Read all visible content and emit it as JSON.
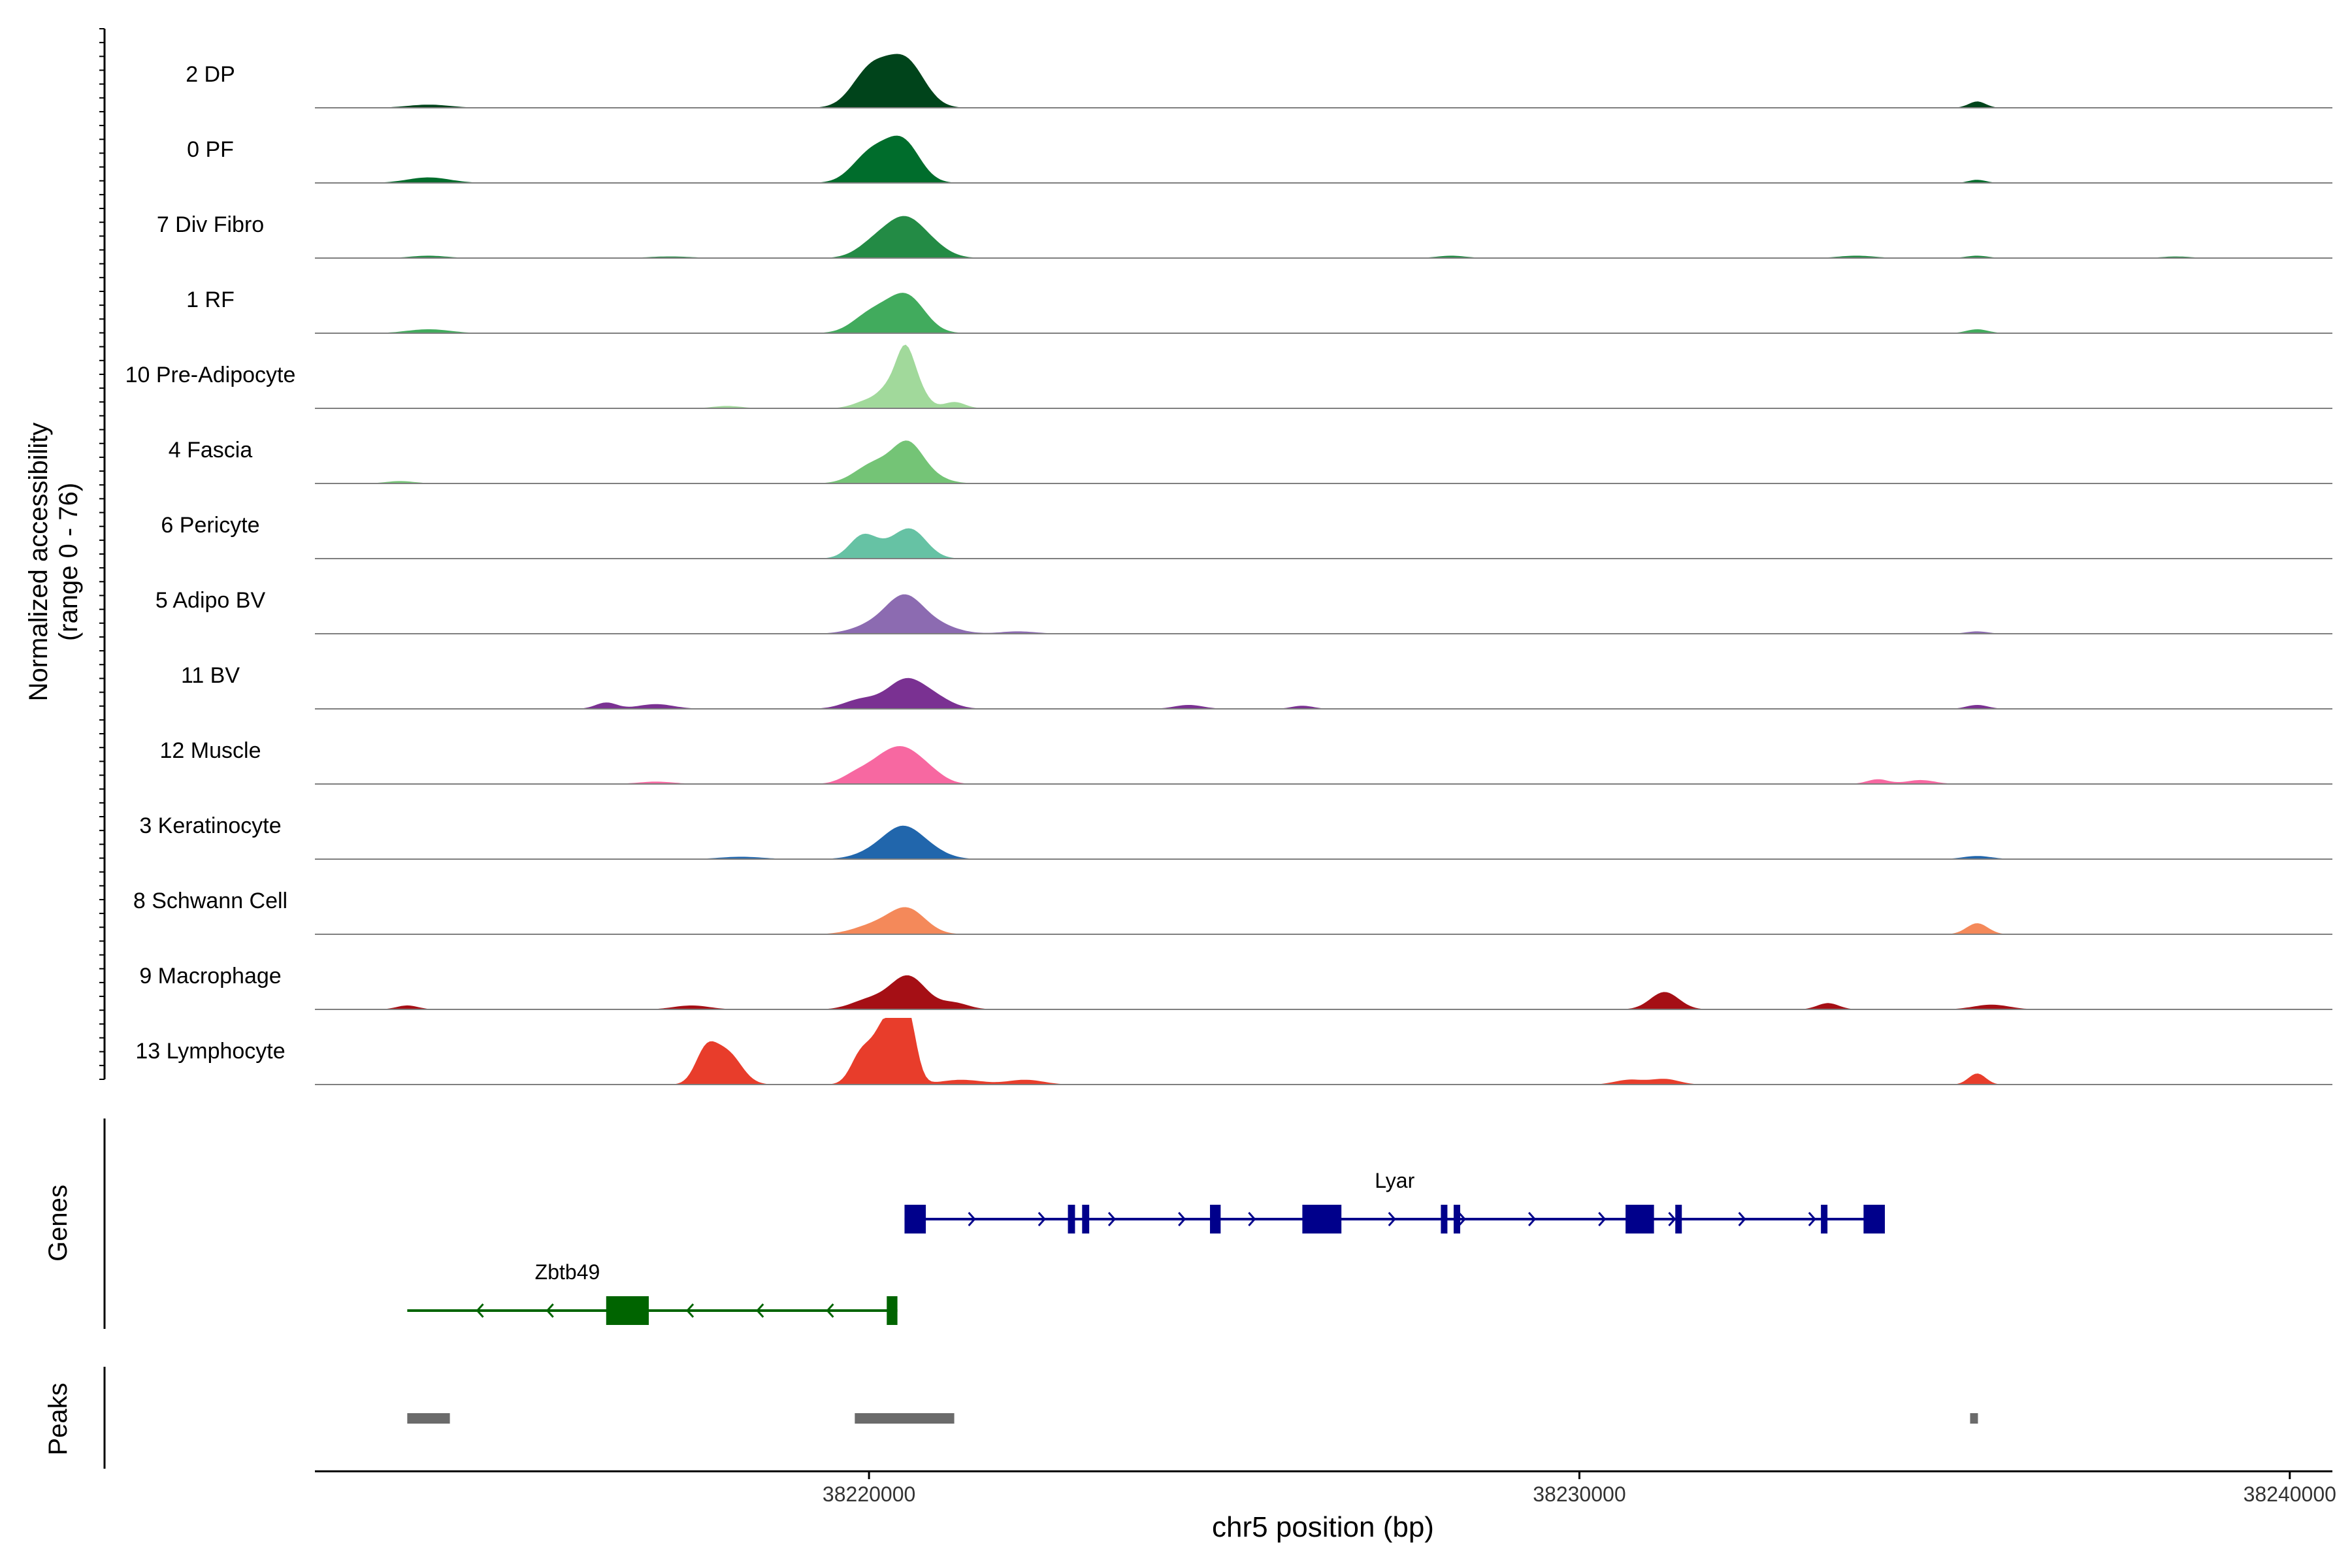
{
  "chart_data": {
    "type": "area",
    "title": "",
    "xlabel": "chr5 position (bp)",
    "ylabel": [
      "Normalized accessibility",
      "(range 0 - 76)"
    ],
    "ylim": [
      0,
      76
    ],
    "xlim": [
      38212200,
      38240600
    ],
    "x_ticks": [
      38220000,
      38230000,
      38240000
    ],
    "x_tick_labels": [
      "38220000",
      "38230000",
      "38240000"
    ],
    "genes_label": "Genes",
    "peaks_label": "Peaks",
    "tracks": [
      {
        "name": "2 DP",
        "color": "#00441b",
        "peaks": [
          [
            38213800,
            4,
            300
          ],
          [
            38220000,
            38,
            250
          ],
          [
            38220550,
            44,
            250
          ],
          [
            38220300,
            22,
            300
          ],
          [
            38235600,
            8,
            120
          ]
        ]
      },
      {
        "name": "0 PF",
        "color": "#006d2c",
        "peaks": [
          [
            38213800,
            7,
            300
          ],
          [
            38220000,
            27,
            250
          ],
          [
            38220500,
            40,
            230
          ],
          [
            38220250,
            18,
            300
          ],
          [
            38235600,
            4,
            120
          ]
        ]
      },
      {
        "name": "7 Div Fibro",
        "color": "#238b45",
        "peaks": [
          [
            38213800,
            3,
            250
          ],
          [
            38217200,
            2,
            300
          ],
          [
            38220100,
            20,
            250
          ],
          [
            38220500,
            42,
            250
          ],
          [
            38220850,
            15,
            250
          ],
          [
            38228200,
            3,
            200
          ],
          [
            38233900,
            3,
            250
          ],
          [
            38235600,
            3,
            150
          ],
          [
            38238400,
            2,
            200
          ]
        ]
      },
      {
        "name": "1 RF",
        "color": "#41ab5d",
        "peaks": [
          [
            38213800,
            5,
            300
          ],
          [
            38220000,
            18,
            250
          ],
          [
            38220550,
            38,
            250
          ],
          [
            38220300,
            14,
            300
          ],
          [
            38235600,
            5,
            150
          ]
        ]
      },
      {
        "name": "10 Pre-Adipocyte",
        "color": "#a1d99b",
        "peaks": [
          [
            38220000,
            10,
            200
          ],
          [
            38220300,
            24,
            150
          ],
          [
            38220500,
            52,
            120
          ],
          [
            38220650,
            30,
            150
          ],
          [
            38221200,
            8,
            150
          ],
          [
            38218000,
            3,
            200
          ]
        ]
      },
      {
        "name": "4 Fascia",
        "color": "#74c476",
        "peaks": [
          [
            38220000,
            14,
            250
          ],
          [
            38220300,
            18,
            300
          ],
          [
            38220550,
            34,
            200
          ],
          [
            38220800,
            10,
            250
          ],
          [
            38213400,
            3,
            200
          ]
        ]
      },
      {
        "name": "6 Pericyte",
        "color": "#66c2a4",
        "peaks": [
          [
            38219900,
            22,
            180
          ],
          [
            38220200,
            14,
            300
          ],
          [
            38220600,
            32,
            220
          ]
        ]
      },
      {
        "name": "5 Adipo BV",
        "color": "#8c6bb1",
        "peaks": [
          [
            38220100,
            12,
            300
          ],
          [
            38220500,
            40,
            250
          ],
          [
            38220900,
            12,
            300
          ],
          [
            38222100,
            3,
            250
          ],
          [
            38235600,
            3,
            150
          ]
        ]
      },
      {
        "name": "11 BV",
        "color": "#7a3192",
        "peaks": [
          [
            38216300,
            8,
            150
          ],
          [
            38217000,
            6,
            250
          ],
          [
            38219900,
            12,
            250
          ],
          [
            38220500,
            34,
            250
          ],
          [
            38220900,
            14,
            250
          ],
          [
            38224500,
            5,
            200
          ],
          [
            38226100,
            4,
            150
          ],
          [
            38235600,
            5,
            150
          ]
        ]
      },
      {
        "name": "12 Muscle",
        "color": "#f768a1",
        "peaks": [
          [
            38219800,
            10,
            200
          ],
          [
            38220200,
            26,
            250
          ],
          [
            38220550,
            34,
            250
          ],
          [
            38220900,
            8,
            200
          ],
          [
            38217000,
            3,
            250
          ],
          [
            38234200,
            6,
            150
          ],
          [
            38234800,
            5,
            200
          ]
        ]
      },
      {
        "name": "3 Keratinocyte",
        "color": "#2166ac",
        "peaks": [
          [
            38220200,
            14,
            300
          ],
          [
            38220500,
            30,
            250
          ],
          [
            38220850,
            10,
            250
          ],
          [
            38218200,
            3,
            300
          ],
          [
            38235600,
            4,
            200
          ]
        ]
      },
      {
        "name": "8 Schwann Cell",
        "color": "#f4895a",
        "peaks": [
          [
            38220100,
            12,
            300
          ],
          [
            38220550,
            30,
            250
          ],
          [
            38235600,
            14,
            150
          ]
        ]
      },
      {
        "name": "9 Macrophage",
        "color": "#a50f15",
        "peaks": [
          [
            38213500,
            5,
            150
          ],
          [
            38217500,
            5,
            250
          ],
          [
            38220000,
            12,
            250
          ],
          [
            38220550,
            42,
            250
          ],
          [
            38221200,
            8,
            200
          ],
          [
            38231200,
            22,
            200
          ],
          [
            38233500,
            8,
            150
          ],
          [
            38235800,
            6,
            250
          ]
        ]
      },
      {
        "name": "13 Lymphocyte",
        "color": "#e83d2b",
        "peaks": [
          [
            38217700,
            38,
            150
          ],
          [
            38218000,
            40,
            200
          ],
          [
            38219900,
            40,
            150
          ],
          [
            38220200,
            56,
            150
          ],
          [
            38220400,
            52,
            150
          ],
          [
            38220550,
            66,
            120
          ],
          [
            38221300,
            6,
            300
          ],
          [
            38222200,
            6,
            250
          ],
          [
            38230700,
            6,
            200
          ],
          [
            38231200,
            7,
            200
          ],
          [
            38235600,
            14,
            120
          ]
        ]
      }
    ],
    "genes": [
      {
        "name": "Lyar",
        "strand": "+",
        "color": "#00008b",
        "start": 38220500,
        "end": 38234300,
        "exons": [
          [
            38220500,
            38220800
          ],
          [
            38222800,
            38222900
          ],
          [
            38223000,
            38223100
          ],
          [
            38224800,
            38224950
          ],
          [
            38226100,
            38226650
          ],
          [
            38228050,
            38228120
          ],
          [
            38228230,
            38228300
          ],
          [
            38230650,
            38231050
          ],
          [
            38231350,
            38231420
          ],
          [
            38233400,
            38233450
          ],
          [
            38234000,
            38234300
          ]
        ]
      },
      {
        "name": "Zbtb49",
        "strand": "-",
        "color": "#006400",
        "start": 38213500,
        "end": 38220400,
        "exons": [
          [
            38216300,
            38216900
          ],
          [
            38220250,
            38220400
          ]
        ]
      }
    ],
    "peak_regions": [
      [
        38213500,
        38214100
      ],
      [
        38219800,
        38221200
      ],
      [
        38235500,
        38235600
      ]
    ],
    "peak_color": "#6b6b6b"
  }
}
